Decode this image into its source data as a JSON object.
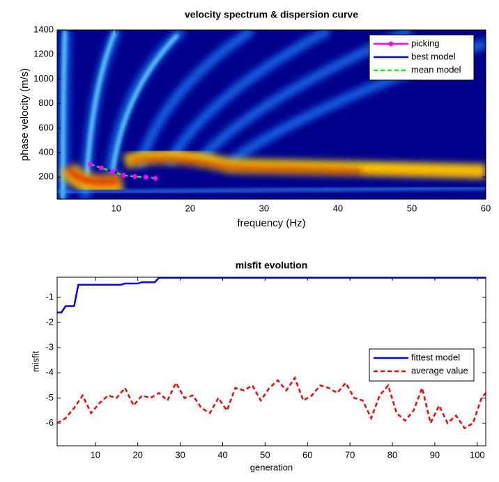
{
  "chart_data": [
    {
      "type": "line",
      "title": "velocity spectrum & dispersion curve",
      "xlabel": "frequency (Hz)",
      "ylabel": "phase velocity (m/s)",
      "xlim": [
        2,
        60
      ],
      "ylim": [
        20,
        1400
      ],
      "xticks": [
        10,
        20,
        30,
        40,
        50,
        60
      ],
      "yticks": [
        200,
        400,
        600,
        800,
        1000,
        1200,
        1400
      ],
      "legend": "upper right",
      "x": [
        6.5,
        8,
        9.5,
        11,
        12.5,
        14,
        15.3
      ],
      "series": [
        {
          "name": "picking",
          "color": "#ff00ff",
          "marker": "circle",
          "dash": false,
          "values": [
            305,
            275,
            245,
            215,
            205,
            200,
            190
          ]
        },
        {
          "name": "best model",
          "color": "#0000ff",
          "dash": false,
          "values": [
            305,
            275,
            245,
            215,
            205,
            200,
            190
          ]
        },
        {
          "name": "mean model",
          "color": "#00ff00",
          "dash": true,
          "values": [
            305,
            275,
            245,
            215,
            205,
            200,
            190
          ]
        }
      ]
    },
    {
      "type": "line",
      "title": "misfit evolution",
      "xlabel": "generation",
      "ylabel": "misfit",
      "xlim": [
        1,
        102
      ],
      "ylim": [
        -6.9,
        -0.2
      ],
      "xticks": [
        10,
        20,
        30,
        40,
        50,
        60,
        70,
        80,
        90,
        100
      ],
      "yticks": [
        -6,
        -5,
        -4,
        -3,
        -2,
        -1
      ],
      "legend": "center right",
      "series": [
        {
          "name": "fittest model",
          "color": "#0000ff",
          "dash": false,
          "x": [
            1,
            2,
            3,
            5,
            6,
            16,
            17,
            20,
            21,
            24,
            25,
            102
          ],
          "values": [
            -1.6,
            -1.6,
            -1.35,
            -1.35,
            -0.5,
            -0.5,
            -0.45,
            -0.45,
            -0.4,
            -0.4,
            -0.22,
            -0.22
          ]
        },
        {
          "name": "average value",
          "color": "#ff0000",
          "dash": true,
          "x": [
            1,
            3,
            5,
            7,
            9,
            11,
            13,
            15,
            17,
            19,
            21,
            23,
            25,
            27,
            29,
            31,
            33,
            35,
            37,
            39,
            41,
            43,
            45,
            47,
            49,
            51,
            53,
            55,
            57,
            59,
            61,
            63,
            65,
            67,
            69,
            71,
            73,
            75,
            77,
            79,
            81,
            83,
            85,
            87,
            89,
            91,
            93,
            95,
            97,
            99,
            101,
            102
          ],
          "values": [
            -6.0,
            -5.8,
            -5.4,
            -4.9,
            -5.6,
            -5.2,
            -4.9,
            -5.0,
            -4.6,
            -5.3,
            -4.9,
            -5.0,
            -4.8,
            -5.1,
            -4.4,
            -5.0,
            -4.9,
            -5.4,
            -5.6,
            -5.0,
            -5.5,
            -4.6,
            -4.7,
            -4.5,
            -5.1,
            -4.6,
            -4.3,
            -4.7,
            -4.2,
            -5.1,
            -4.9,
            -4.5,
            -4.6,
            -4.8,
            -4.4,
            -5.0,
            -5.1,
            -5.8,
            -4.9,
            -4.5,
            -5.6,
            -5.9,
            -5.5,
            -4.6,
            -6.0,
            -5.3,
            -6.0,
            -5.7,
            -6.2,
            -6.0,
            -5.0,
            -4.8
          ]
        }
      ]
    }
  ]
}
